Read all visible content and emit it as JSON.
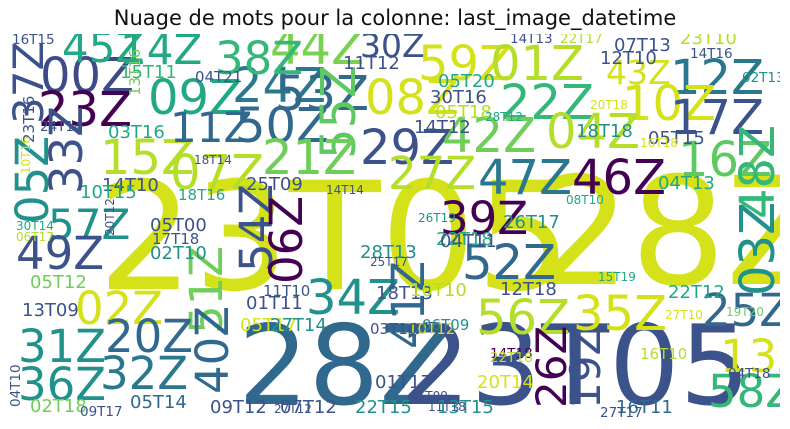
{
  "chart_data": {
    "type": "wordcloud",
    "title": "Nuage de mots pour la colonne: last_image_datetime",
    "colormap": "viridis",
    "background": "#ffffff",
    "words": [
      {
        "text": "23T05",
        "weight": 100,
        "color": "#d5e21a"
      },
      {
        "text": "28Z",
        "weight": 100,
        "color": "#d5e21a"
      },
      {
        "text": "28Z",
        "weight": 74,
        "color": "#31688e"
      },
      {
        "text": "23T05",
        "weight": 74,
        "color": "#3b528b"
      },
      {
        "text": "00Z",
        "weight": 32,
        "color": "#3e4a89"
      },
      {
        "text": "23Z",
        "weight": 32,
        "color": "#440154"
      },
      {
        "text": "09Z",
        "weight": 32,
        "color": "#22a884"
      },
      {
        "text": "24Z",
        "weight": 32,
        "color": "#2a788e"
      },
      {
        "text": "44Z",
        "weight": 32,
        "color": "#7ad151"
      },
      {
        "text": "38Z",
        "weight": 30,
        "color": "#35b779"
      },
      {
        "text": "45Z",
        "weight": 28,
        "color": "#22a884"
      },
      {
        "text": "14Z",
        "weight": 28,
        "color": "#22a884"
      },
      {
        "text": "59Z",
        "weight": 32,
        "color": "#d5e21a"
      },
      {
        "text": "01Z",
        "weight": 32,
        "color": "#b5de2b"
      },
      {
        "text": "12Z",
        "weight": 32,
        "color": "#2a788e"
      },
      {
        "text": "53Z",
        "weight": 32,
        "color": "#31688e"
      },
      {
        "text": "08Z",
        "weight": 32,
        "color": "#d5e21a"
      },
      {
        "text": "22Z",
        "weight": 32,
        "color": "#35b779"
      },
      {
        "text": "50Z",
        "weight": 32,
        "color": "#31688e"
      },
      {
        "text": "10Z",
        "weight": 32,
        "color": "#d5e21a"
      },
      {
        "text": "17Z",
        "weight": 32,
        "color": "#3b528b"
      },
      {
        "text": "55Z",
        "weight": 32,
        "color": "#5ec962"
      },
      {
        "text": "29Z",
        "weight": 32,
        "color": "#3b528b"
      },
      {
        "text": "42Z",
        "weight": 32,
        "color": "#6ece58"
      },
      {
        "text": "04Z",
        "weight": 32,
        "color": "#b5de2b"
      },
      {
        "text": "16Z",
        "weight": 32,
        "color": "#5ec962"
      },
      {
        "text": "48Z",
        "weight": 32,
        "color": "#35b779"
      },
      {
        "text": "15Z",
        "weight": 32,
        "color": "#b5de2b"
      },
      {
        "text": "07Z",
        "weight": 32,
        "color": "#b5de2b"
      },
      {
        "text": "21Z",
        "weight": 32,
        "color": "#6ece58"
      },
      {
        "text": "47Z",
        "weight": 32,
        "color": "#2a788e"
      },
      {
        "text": "46Z",
        "weight": 32,
        "color": "#440154"
      },
      {
        "text": "27Z",
        "weight": 30,
        "color": "#b5de2b"
      },
      {
        "text": "33Z",
        "weight": 30,
        "color": "#3b528b"
      },
      {
        "text": "05Z",
        "weight": 30,
        "color": "#21918c"
      },
      {
        "text": "37Z",
        "weight": 28,
        "color": "#3b528b"
      },
      {
        "text": "57Z",
        "weight": 28,
        "color": "#21918c"
      },
      {
        "text": "49Z",
        "weight": 30,
        "color": "#3b528b"
      },
      {
        "text": "02Z",
        "weight": 30,
        "color": "#d5e21a"
      },
      {
        "text": "39Z",
        "weight": 30,
        "color": "#440154"
      },
      {
        "text": "52Z",
        "weight": 32,
        "color": "#31688e"
      },
      {
        "text": "03Z",
        "weight": 32,
        "color": "#21918c"
      },
      {
        "text": "54Z",
        "weight": 30,
        "color": "#3b528b"
      },
      {
        "text": "06Z",
        "weight": 30,
        "color": "#440154"
      },
      {
        "text": "34Z",
        "weight": 32,
        "color": "#21918c"
      },
      {
        "text": "51Z",
        "weight": 30,
        "color": "#6ece58"
      },
      {
        "text": "56Z",
        "weight": 32,
        "color": "#b5de2b"
      },
      {
        "text": "35Z",
        "weight": 32,
        "color": "#d5e21a"
      },
      {
        "text": "25Z",
        "weight": 30,
        "color": "#31688e"
      },
      {
        "text": "13Z",
        "weight": 30,
        "color": "#d5e21a"
      },
      {
        "text": "31Z",
        "weight": 30,
        "color": "#21918c"
      },
      {
        "text": "20Z",
        "weight": 30,
        "color": "#31688e"
      },
      {
        "text": "40Z",
        "weight": 30,
        "color": "#31688e"
      },
      {
        "text": "41Z",
        "weight": 30,
        "color": "#31688e"
      },
      {
        "text": "36Z",
        "weight": 30,
        "color": "#21918c"
      },
      {
        "text": "32Z",
        "weight": 30,
        "color": "#2a788e"
      },
      {
        "text": "26Z",
        "weight": 28,
        "color": "#440154"
      },
      {
        "text": "19Z",
        "weight": 28,
        "color": "#3b528b"
      },
      {
        "text": "58Z",
        "weight": 30,
        "color": "#35b779"
      },
      {
        "text": "11Z",
        "weight": 28,
        "color": "#31688e"
      },
      {
        "text": "43Z",
        "weight": 22,
        "color": "#d5e21a"
      },
      {
        "text": "30Z",
        "weight": 22,
        "color": "#3b528b"
      },
      {
        "text": "13T16",
        "weight": 10,
        "color": "#6ece58"
      },
      {
        "text": "14T12",
        "weight": 12,
        "color": "#3b528b"
      },
      {
        "text": "14T10",
        "weight": 12,
        "color": "#3b528b"
      },
      {
        "text": "25T09",
        "weight": 12,
        "color": "#3b528b"
      },
      {
        "text": "05T00",
        "weight": 12,
        "color": "#3b528b"
      },
      {
        "text": "02T10",
        "weight": 12,
        "color": "#21918c"
      },
      {
        "text": "05T12",
        "weight": 12,
        "color": "#6ece58"
      },
      {
        "text": "13T09",
        "weight": 12,
        "color": "#3b528b"
      },
      {
        "text": "02T18",
        "weight": 12,
        "color": "#6ece58"
      },
      {
        "text": "05T14",
        "weight": 12,
        "color": "#31688e"
      },
      {
        "text": "09T12",
        "weight": 12,
        "color": "#3b528b"
      },
      {
        "text": "07T12",
        "weight": 12,
        "color": "#3b528b"
      },
      {
        "text": "22T15",
        "weight": 12,
        "color": "#21918c"
      },
      {
        "text": "13T15",
        "weight": 12,
        "color": "#21918c"
      },
      {
        "text": "16T11",
        "weight": 12,
        "color": "#31688e"
      },
      {
        "text": "22T18",
        "weight": 12,
        "color": "#22a884"
      },
      {
        "text": "04T11",
        "weight": 12,
        "color": "#3b528b"
      },
      {
        "text": "28T13",
        "weight": 12,
        "color": "#21918c"
      },
      {
        "text": "18T13",
        "weight": 12,
        "color": "#3b528b"
      },
      {
        "text": "12T18",
        "weight": 12,
        "color": "#3b528b"
      },
      {
        "text": "10T10",
        "weight": 12,
        "color": "#b5de2b"
      },
      {
        "text": "22T12",
        "weight": 12,
        "color": "#22a884"
      },
      {
        "text": "18T18",
        "weight": 12,
        "color": "#21918c"
      },
      {
        "text": "05T15",
        "weight": 12,
        "color": "#3b528b"
      },
      {
        "text": "04T13",
        "weight": 12,
        "color": "#22a884"
      },
      {
        "text": "30T16",
        "weight": 12,
        "color": "#3b528b"
      },
      {
        "text": "05T18",
        "weight": 12,
        "color": "#b5de2b"
      },
      {
        "text": "05T20",
        "weight": 12,
        "color": "#22a884"
      },
      {
        "text": "15T11",
        "weight": 12,
        "color": "#35b779"
      },
      {
        "text": "03T16",
        "weight": 12,
        "color": "#22a884"
      },
      {
        "text": "10T15",
        "weight": 12,
        "color": "#22a884"
      },
      {
        "text": "01T11",
        "weight": 12,
        "color": "#3b528b"
      },
      {
        "text": "05T17",
        "weight": 12,
        "color": "#d5e21a"
      },
      {
        "text": "27T14",
        "weight": 12,
        "color": "#21918c"
      },
      {
        "text": "01T17",
        "weight": 12,
        "color": "#3b528b"
      },
      {
        "text": "20T14",
        "weight": 12,
        "color": "#d5e21a"
      },
      {
        "text": "26T17",
        "weight": 12,
        "color": "#21918c"
      },
      {
        "text": "11T10",
        "weight": 10,
        "color": "#3b528b"
      },
      {
        "text": "07T13",
        "weight": 12,
        "color": "#3b528b"
      },
      {
        "text": "12T10",
        "weight": 12,
        "color": "#3b528b"
      },
      {
        "text": "23T10",
        "weight": 12,
        "color": "#b5de2b"
      },
      {
        "text": "11T12",
        "weight": 12,
        "color": "#3b528b"
      },
      {
        "text": "18T16",
        "weight": 10,
        "color": "#22a884"
      },
      {
        "text": "17T18",
        "weight": 10,
        "color": "#3b528b"
      },
      {
        "text": "10T12",
        "weight": 10,
        "color": "#d5e21a"
      },
      {
        "text": "06T09",
        "weight": 10,
        "color": "#21918c"
      },
      {
        "text": "03T10",
        "weight": 10,
        "color": "#3b528b"
      },
      {
        "text": "16T10",
        "weight": 10,
        "color": "#b5de2b"
      },
      {
        "text": "16T15",
        "weight": 9,
        "color": "#3b528b"
      },
      {
        "text": "04T21",
        "weight": 10,
        "color": "#3b528b"
      },
      {
        "text": "14T13",
        "weight": 9,
        "color": "#3b528b"
      },
      {
        "text": "22T17",
        "weight": 9,
        "color": "#b5de2b"
      },
      {
        "text": "14T16",
        "weight": 9,
        "color": "#3b528b"
      },
      {
        "text": "02T13",
        "weight": 9,
        "color": "#21918c"
      },
      {
        "text": "24T14",
        "weight": 9,
        "color": "#3b528b"
      },
      {
        "text": "23T16",
        "weight": 10,
        "color": "#3b528b"
      },
      {
        "text": "04T10",
        "weight": 9,
        "color": "#3b528b"
      },
      {
        "text": "09T17",
        "weight": 9,
        "color": "#3b528b"
      },
      {
        "text": "27T12",
        "weight": 8,
        "color": "#3b528b"
      },
      {
        "text": "27T17",
        "weight": 9,
        "color": "#3b528b"
      },
      {
        "text": "04T18",
        "weight": 9,
        "color": "#3b528b"
      },
      {
        "text": "14T18",
        "weight": 9,
        "color": "#440154"
      },
      {
        "text": "22T16",
        "weight": 9,
        "color": "#b5de2b"
      },
      {
        "text": "26T19",
        "weight": 8,
        "color": "#21918c"
      },
      {
        "text": "25T17",
        "weight": 8,
        "color": "#3b528b"
      },
      {
        "text": "20T12",
        "weight": 8,
        "color": "#3b528b"
      },
      {
        "text": "30T14",
        "weight": 8,
        "color": "#22a884"
      },
      {
        "text": "06T17",
        "weight": 8,
        "color": "#b5de2b"
      },
      {
        "text": "28T12",
        "weight": 8,
        "color": "#22a884"
      },
      {
        "text": "18T14",
        "weight": 8,
        "color": "#3b528b"
      },
      {
        "text": "14T14",
        "weight": 8,
        "color": "#3b528b"
      },
      {
        "text": "08T10",
        "weight": 8,
        "color": "#22a884"
      },
      {
        "text": "15T19",
        "weight": 8,
        "color": "#22a884"
      },
      {
        "text": "27T10",
        "weight": 8,
        "color": "#d5e21a"
      },
      {
        "text": "19T20",
        "weight": 8,
        "color": "#6ece58"
      },
      {
        "text": "05T09",
        "weight": 8,
        "color": "#3b528b"
      },
      {
        "text": "11T18",
        "weight": 8,
        "color": "#3b528b"
      },
      {
        "text": "20T18",
        "weight": 8,
        "color": "#d5e21a"
      },
      {
        "text": "16T18",
        "weight": 8,
        "color": "#d5e21a"
      },
      {
        "text": "10T16",
        "weight": 8,
        "color": "#d5e21a"
      }
    ]
  }
}
